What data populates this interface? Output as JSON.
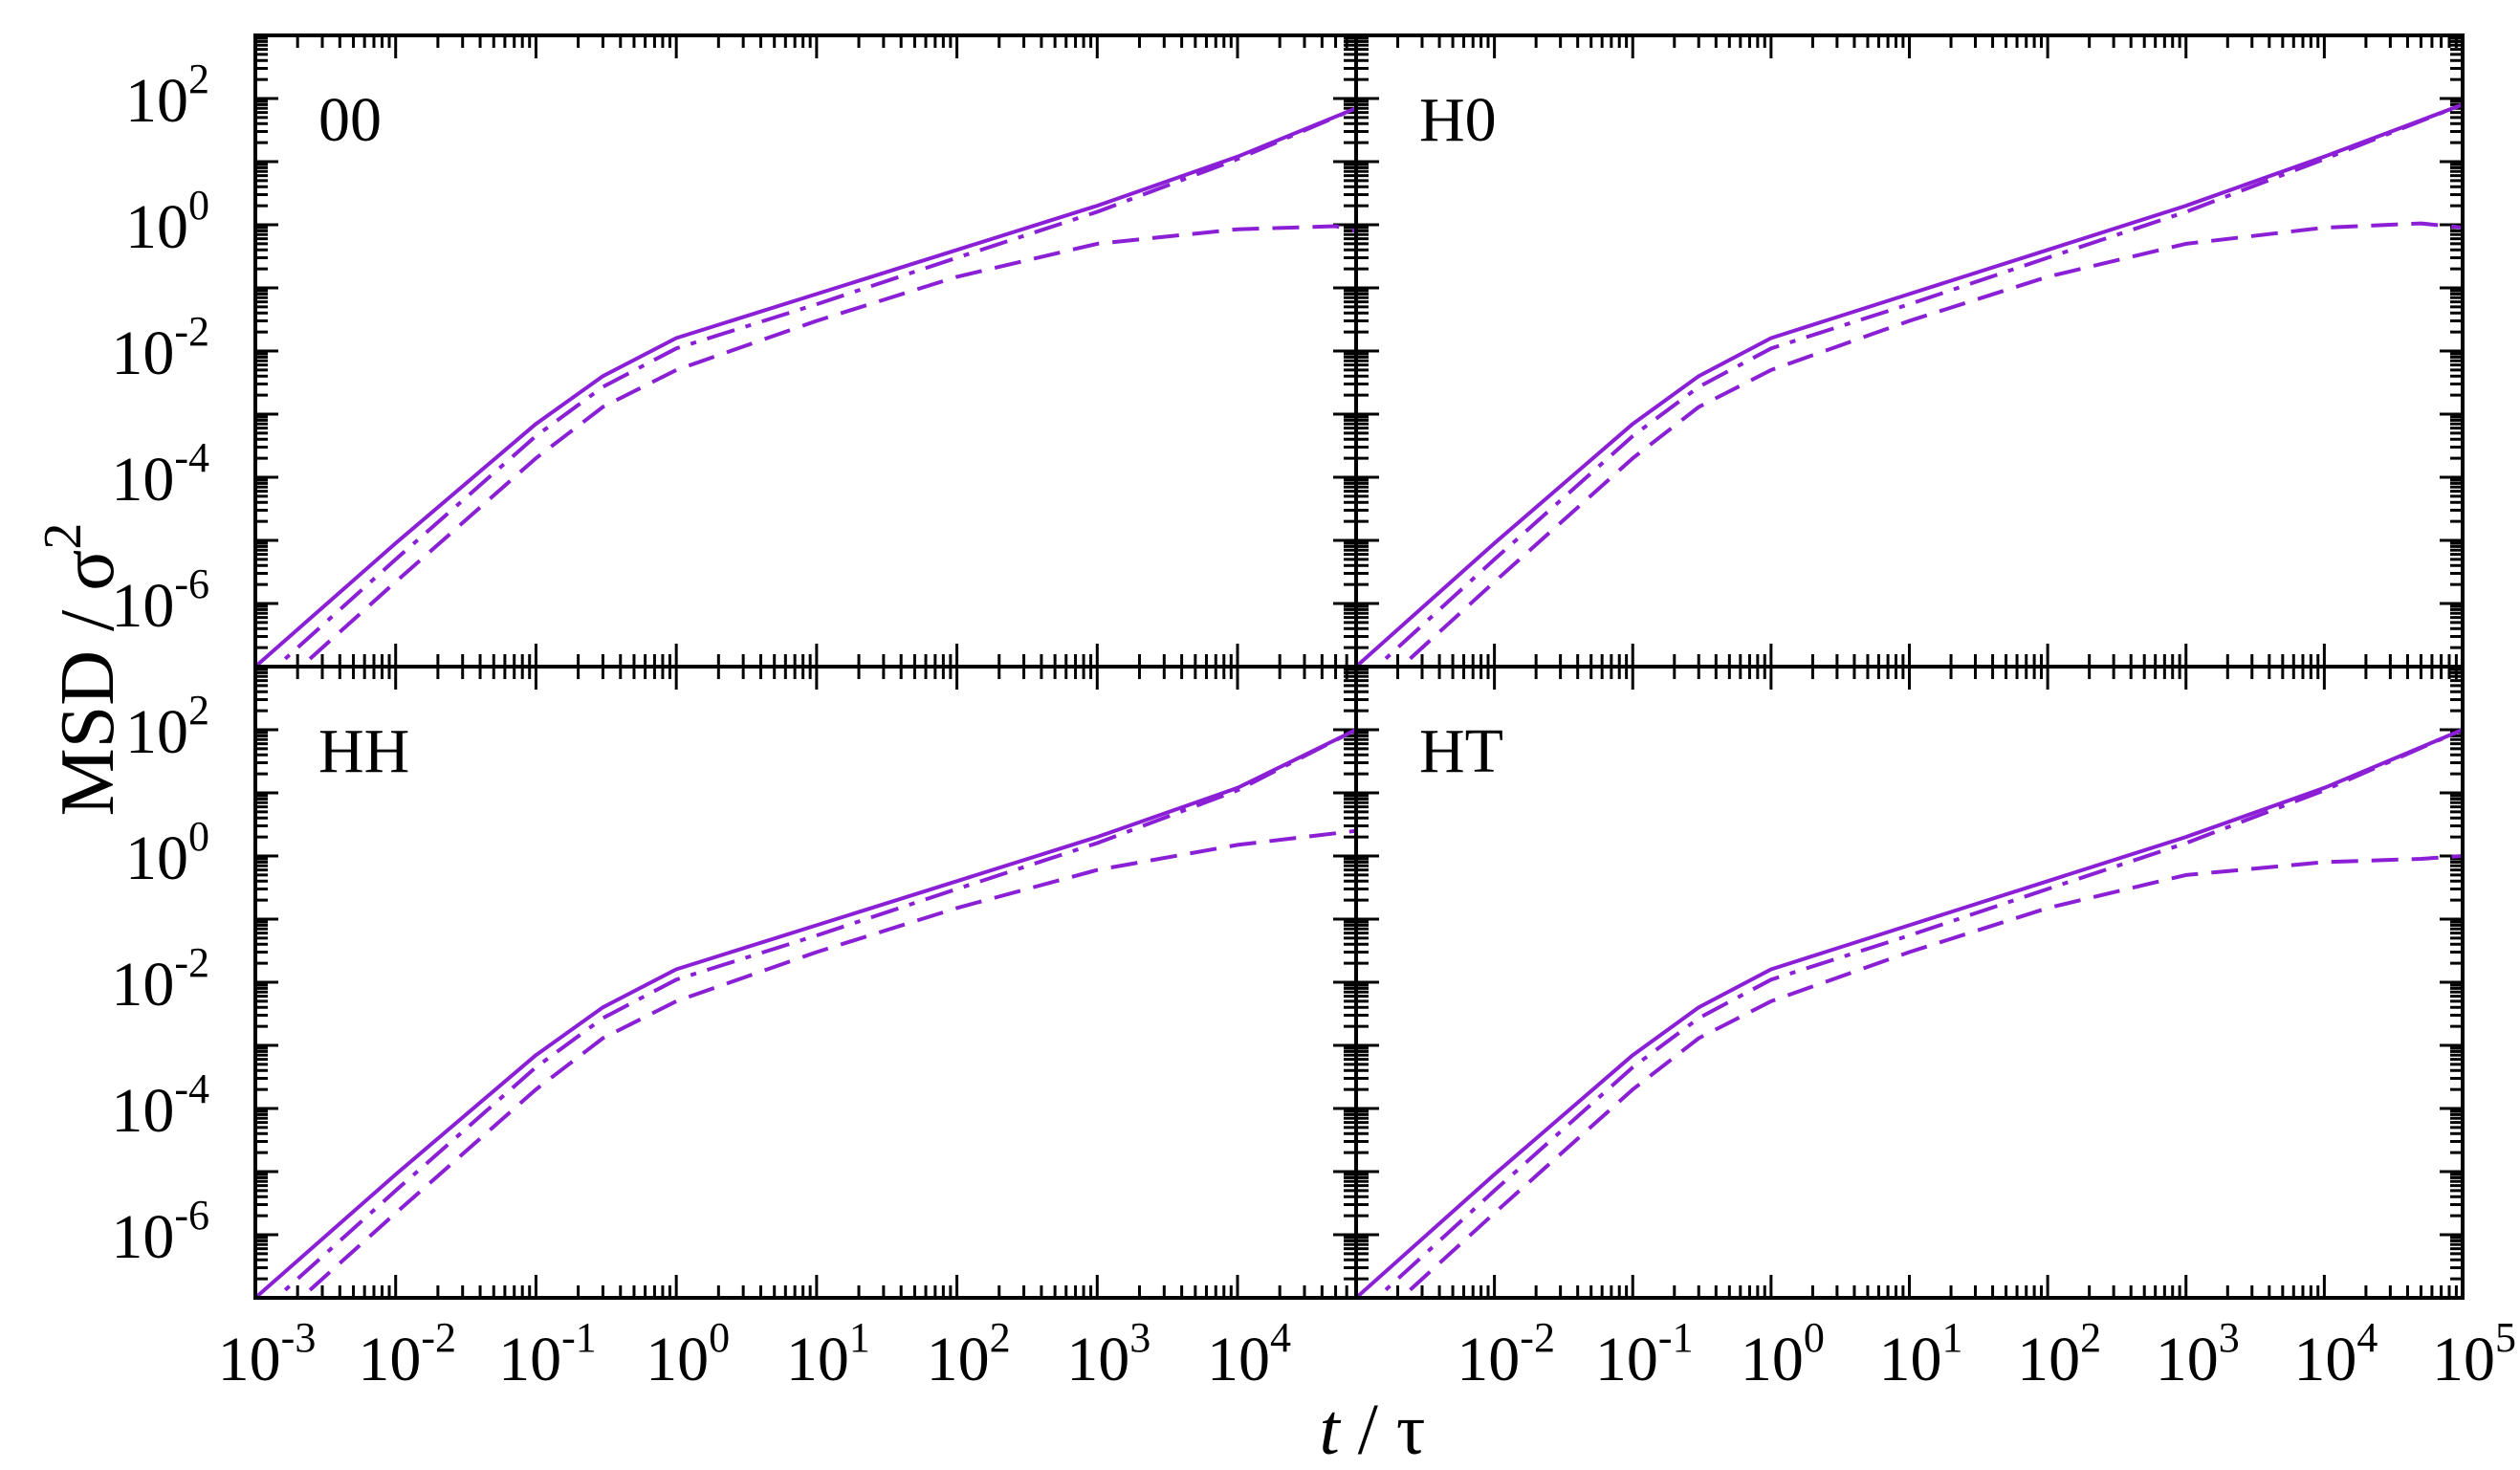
{
  "figure": {
    "ylabel": "MSD / σ",
    "ylabel_superscript": "2",
    "xlabel_italic": "t",
    "xlabel_rest": " / τ"
  },
  "colors": {
    "line": "#8B1FD6",
    "axis": "#000000",
    "background": "#ffffff"
  },
  "chart_data": [
    {
      "type": "line",
      "title": "00",
      "x_scale": "log",
      "y_scale": "log",
      "xlim": [
        0.001,
        70000
      ],
      "ylim": [
        1e-07,
        1000
      ],
      "series": [
        {
          "style": "solid",
          "x": [
            0.001,
            0.01,
            0.1,
            0.3,
            1,
            10,
            100,
            1000,
            10000,
            70000
          ],
          "y": [
            1e-07,
            9e-06,
            0.0007,
            0.004,
            0.016,
            0.08,
            0.4,
            2,
            12,
            70
          ]
        },
        {
          "style": "dash-dot",
          "x": [
            0.001,
            0.01,
            0.1,
            0.3,
            1,
            10,
            100,
            1000,
            10000,
            70000
          ],
          "y": [
            5e-08,
            5e-06,
            0.00045,
            0.0027,
            0.011,
            0.055,
            0.3,
            1.6,
            11,
            70
          ]
        },
        {
          "style": "dashed",
          "x": [
            0.0015,
            0.01,
            0.1,
            0.3,
            1,
            10,
            100,
            1000,
            10000,
            50000,
            70000
          ],
          "y": [
            5e-08,
            2.2e-06,
            0.0002,
            0.0013,
            0.005,
            0.03,
            0.15,
            0.5,
            0.85,
            0.95,
            0.8
          ]
        }
      ]
    },
    {
      "type": "line",
      "title": "H0",
      "x_scale": "log",
      "y_scale": "log",
      "xlim": [
        0.001,
        100000
      ],
      "ylim": [
        1e-07,
        1000
      ],
      "series": [
        {
          "style": "solid",
          "x": [
            0.001,
            0.01,
            0.1,
            0.3,
            1,
            10,
            100,
            1000,
            10000,
            100000
          ],
          "y": [
            1e-07,
            9e-06,
            0.0007,
            0.004,
            0.016,
            0.08,
            0.4,
            2,
            12,
            80
          ]
        },
        {
          "style": "dash-dot",
          "x": [
            0.001,
            0.01,
            0.1,
            0.3,
            1,
            10,
            100,
            1000,
            10000,
            100000
          ],
          "y": [
            5e-08,
            5e-06,
            0.00045,
            0.0027,
            0.011,
            0.055,
            0.3,
            1.6,
            11,
            80
          ]
        },
        {
          "style": "dashed",
          "x": [
            0.0015,
            0.01,
            0.1,
            0.3,
            1,
            10,
            100,
            1000,
            10000,
            50000,
            100000
          ],
          "y": [
            5e-08,
            2.2e-06,
            0.0002,
            0.0013,
            0.005,
            0.03,
            0.15,
            0.5,
            0.9,
            1.05,
            0.9
          ]
        }
      ]
    },
    {
      "type": "line",
      "title": "HH",
      "x_scale": "log",
      "y_scale": "log",
      "xlim": [
        0.001,
        70000
      ],
      "ylim": [
        1e-07,
        1000
      ],
      "series": [
        {
          "style": "solid",
          "x": [
            0.001,
            0.01,
            0.1,
            0.3,
            1,
            10,
            100,
            1000,
            10000,
            70000
          ],
          "y": [
            1e-07,
            9e-06,
            0.0007,
            0.004,
            0.016,
            0.08,
            0.4,
            2,
            12,
            100
          ]
        },
        {
          "style": "dash-dot",
          "x": [
            0.001,
            0.01,
            0.1,
            0.3,
            1,
            10,
            100,
            1000,
            10000,
            70000
          ],
          "y": [
            5e-08,
            5e-06,
            0.00045,
            0.0027,
            0.011,
            0.055,
            0.3,
            1.6,
            11,
            100
          ]
        },
        {
          "style": "dashed",
          "x": [
            0.0015,
            0.01,
            0.1,
            0.3,
            1,
            10,
            100,
            1000,
            10000,
            70000
          ],
          "y": [
            5e-08,
            2.2e-06,
            0.0002,
            0.0013,
            0.005,
            0.03,
            0.15,
            0.6,
            1.5,
            2.5
          ]
        }
      ]
    },
    {
      "type": "line",
      "title": "HT",
      "x_scale": "log",
      "y_scale": "log",
      "xlim": [
        0.001,
        100000
      ],
      "ylim": [
        1e-07,
        1000
      ],
      "series": [
        {
          "style": "solid",
          "x": [
            0.001,
            0.01,
            0.1,
            0.3,
            1,
            10,
            100,
            1000,
            10000,
            100000
          ],
          "y": [
            1e-07,
            9e-06,
            0.0007,
            0.004,
            0.016,
            0.08,
            0.4,
            2,
            12,
            100
          ]
        },
        {
          "style": "dash-dot",
          "x": [
            0.001,
            0.01,
            0.1,
            0.3,
            1,
            10,
            100,
            1000,
            10000,
            100000
          ],
          "y": [
            5e-08,
            5e-06,
            0.00045,
            0.0027,
            0.011,
            0.055,
            0.3,
            1.6,
            11,
            100
          ]
        },
        {
          "style": "dashed",
          "x": [
            0.0015,
            0.01,
            0.1,
            0.3,
            1,
            10,
            100,
            1000,
            10000,
            50000,
            100000
          ],
          "y": [
            5e-08,
            2.2e-06,
            0.0002,
            0.0013,
            0.005,
            0.03,
            0.15,
            0.5,
            0.8,
            0.9,
            1.0
          ]
        }
      ]
    }
  ],
  "axes": {
    "y_ticks": [
      {
        "base": "10",
        "exp": "2",
        "value": 100
      },
      {
        "base": "10",
        "exp": "0",
        "value": 1
      },
      {
        "base": "10",
        "exp": "-2",
        "value": 0.01
      },
      {
        "base": "10",
        "exp": "-4",
        "value": 0.0001
      },
      {
        "base": "10",
        "exp": "-6",
        "value": 1e-06
      }
    ],
    "x_ticks_left": [
      {
        "base": "10",
        "exp": "-3",
        "value": 0.001
      },
      {
        "base": "10",
        "exp": "-2",
        "value": 0.01
      },
      {
        "base": "10",
        "exp": "-1",
        "value": 0.1
      },
      {
        "base": "10",
        "exp": "0",
        "value": 1
      },
      {
        "base": "10",
        "exp": "1",
        "value": 10
      },
      {
        "base": "10",
        "exp": "2",
        "value": 100
      },
      {
        "base": "10",
        "exp": "3",
        "value": 1000
      },
      {
        "base": "10",
        "exp": "4",
        "value": 10000
      }
    ],
    "x_ticks_right": [
      {
        "base": "10",
        "exp": "-2",
        "value": 0.01
      },
      {
        "base": "10",
        "exp": "-1",
        "value": 0.1
      },
      {
        "base": "10",
        "exp": "0",
        "value": 1
      },
      {
        "base": "10",
        "exp": "1",
        "value": 10
      },
      {
        "base": "10",
        "exp": "2",
        "value": 100
      },
      {
        "base": "10",
        "exp": "3",
        "value": 1000
      },
      {
        "base": "10",
        "exp": "4",
        "value": 10000
      },
      {
        "base": "10",
        "exp": "5",
        "value": 100000
      }
    ]
  }
}
